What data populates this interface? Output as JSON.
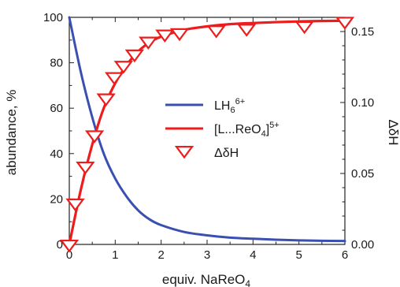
{
  "chart_data": {
    "type": "line",
    "xlabel_main": "equiv. NaReO",
    "xlabel_sub": "4",
    "ylabel_left": "abundance, %",
    "ylabel_right": "ΔδH",
    "xlim": [
      0,
      6
    ],
    "ylim_left": [
      0,
      100
    ],
    "ylim_right": [
      0,
      0.16
    ],
    "x_ticks": [
      0,
      1,
      2,
      3,
      4,
      5,
      6
    ],
    "y_left_ticks": [
      0,
      20,
      40,
      60,
      80,
      100
    ],
    "y_right_ticks": [
      "0.00",
      "0.05",
      "0.10",
      "0.15"
    ],
    "grid": false,
    "legend_position": "center-right",
    "series": [
      {
        "name": "LH6 6+",
        "legend": {
          "base": "LH",
          "sub": "6",
          "sup": "6+"
        },
        "kind": "line",
        "axis": "left",
        "color": "#3a50b0",
        "x": [
          0,
          0.25,
          0.5,
          0.75,
          1.0,
          1.25,
          1.5,
          1.75,
          2.0,
          2.5,
          3.0,
          3.5,
          4.0,
          4.5,
          5.0,
          5.5,
          6.0
        ],
        "y": [
          100,
          76,
          56,
          40,
          29,
          21,
          15,
          11,
          8.5,
          5.5,
          4.0,
          3.0,
          2.5,
          2.1,
          1.8,
          1.6,
          1.5
        ]
      },
      {
        "name": "[L...ReO4]5+",
        "legend": {
          "base": "[L...ReO",
          "sub": "4",
          "close": "]",
          "sup": "5+"
        },
        "kind": "line",
        "axis": "left",
        "color": "#ee1c1c",
        "x": [
          0,
          0.25,
          0.5,
          0.75,
          1.0,
          1.25,
          1.5,
          1.75,
          2.0,
          2.5,
          3.0,
          3.5,
          4.0,
          4.5,
          5.0,
          5.5,
          6.0
        ],
        "y": [
          0,
          24,
          44,
          60,
          71,
          79,
          85,
          89,
          91.5,
          94.5,
          96,
          97,
          97.5,
          97.9,
          98.2,
          98.4,
          98.5
        ]
      },
      {
        "name": "ΔδH",
        "legend": {
          "base": "ΔδH"
        },
        "kind": "marker-triangle-down",
        "axis": "right",
        "color": "#ee1c1c",
        "x": [
          0,
          0.13,
          0.35,
          0.55,
          0.8,
          0.98,
          1.18,
          1.42,
          1.72,
          2.08,
          2.4,
          3.2,
          3.86,
          5.12,
          6.0
        ],
        "y": [
          0.0,
          0.029,
          0.055,
          0.077,
          0.103,
          0.118,
          0.126,
          0.134,
          0.143,
          0.148,
          0.149,
          0.151,
          0.152,
          0.154,
          0.157
        ]
      }
    ]
  }
}
